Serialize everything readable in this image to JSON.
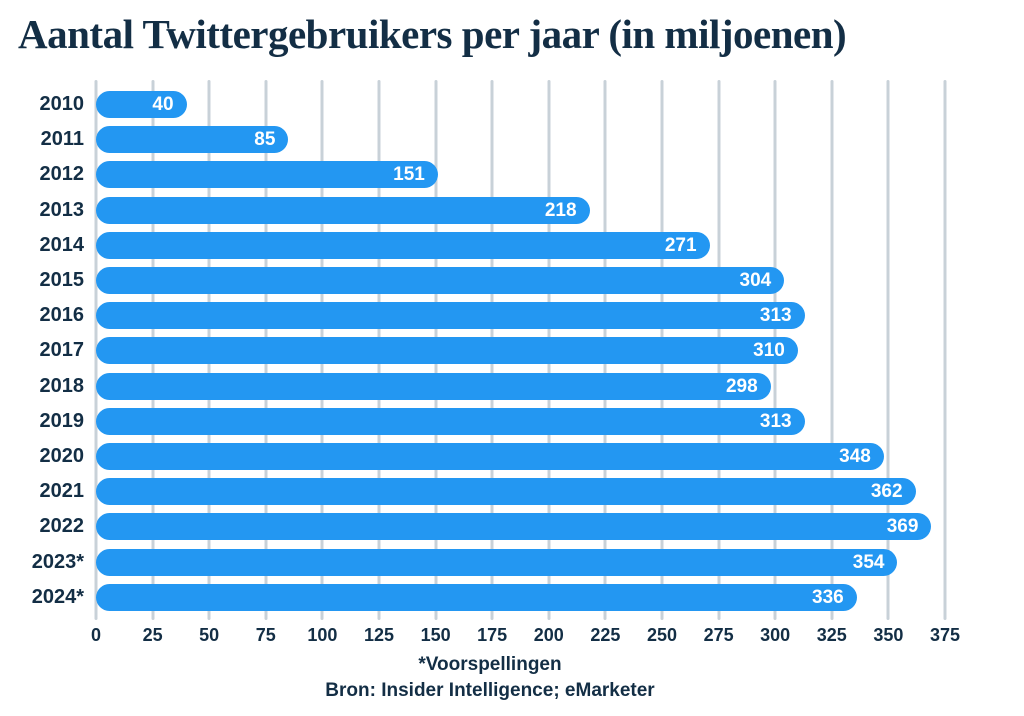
{
  "chart_data": {
    "type": "bar",
    "orientation": "horizontal",
    "title": "Aantal Twittergebruikers per jaar (in miljoenen)",
    "categories": [
      "2010",
      "2011",
      "2012",
      "2013",
      "2014",
      "2015",
      "2016",
      "2017",
      "2018",
      "2019",
      "2020",
      "2021",
      "2022",
      "2023*",
      "2024*"
    ],
    "values": [
      40,
      85,
      151,
      218,
      271,
      304,
      313,
      310,
      298,
      313,
      348,
      362,
      369,
      354,
      336
    ],
    "xlabel": "",
    "ylabel": "",
    "xlim": [
      0,
      375
    ],
    "xticks": [
      0,
      25,
      50,
      75,
      100,
      125,
      150,
      175,
      200,
      225,
      250,
      275,
      300,
      325,
      350,
      375
    ],
    "grid": true,
    "legend": false,
    "footnote": "*Voorspellingen",
    "source": "Bron: Insider Intelligence; eMarketer",
    "colors": {
      "bar": "#2397f2",
      "bar_label": "#ffffff",
      "text": "#132e45",
      "gridline": "#c8d1d8",
      "background": "#ffffff"
    }
  }
}
